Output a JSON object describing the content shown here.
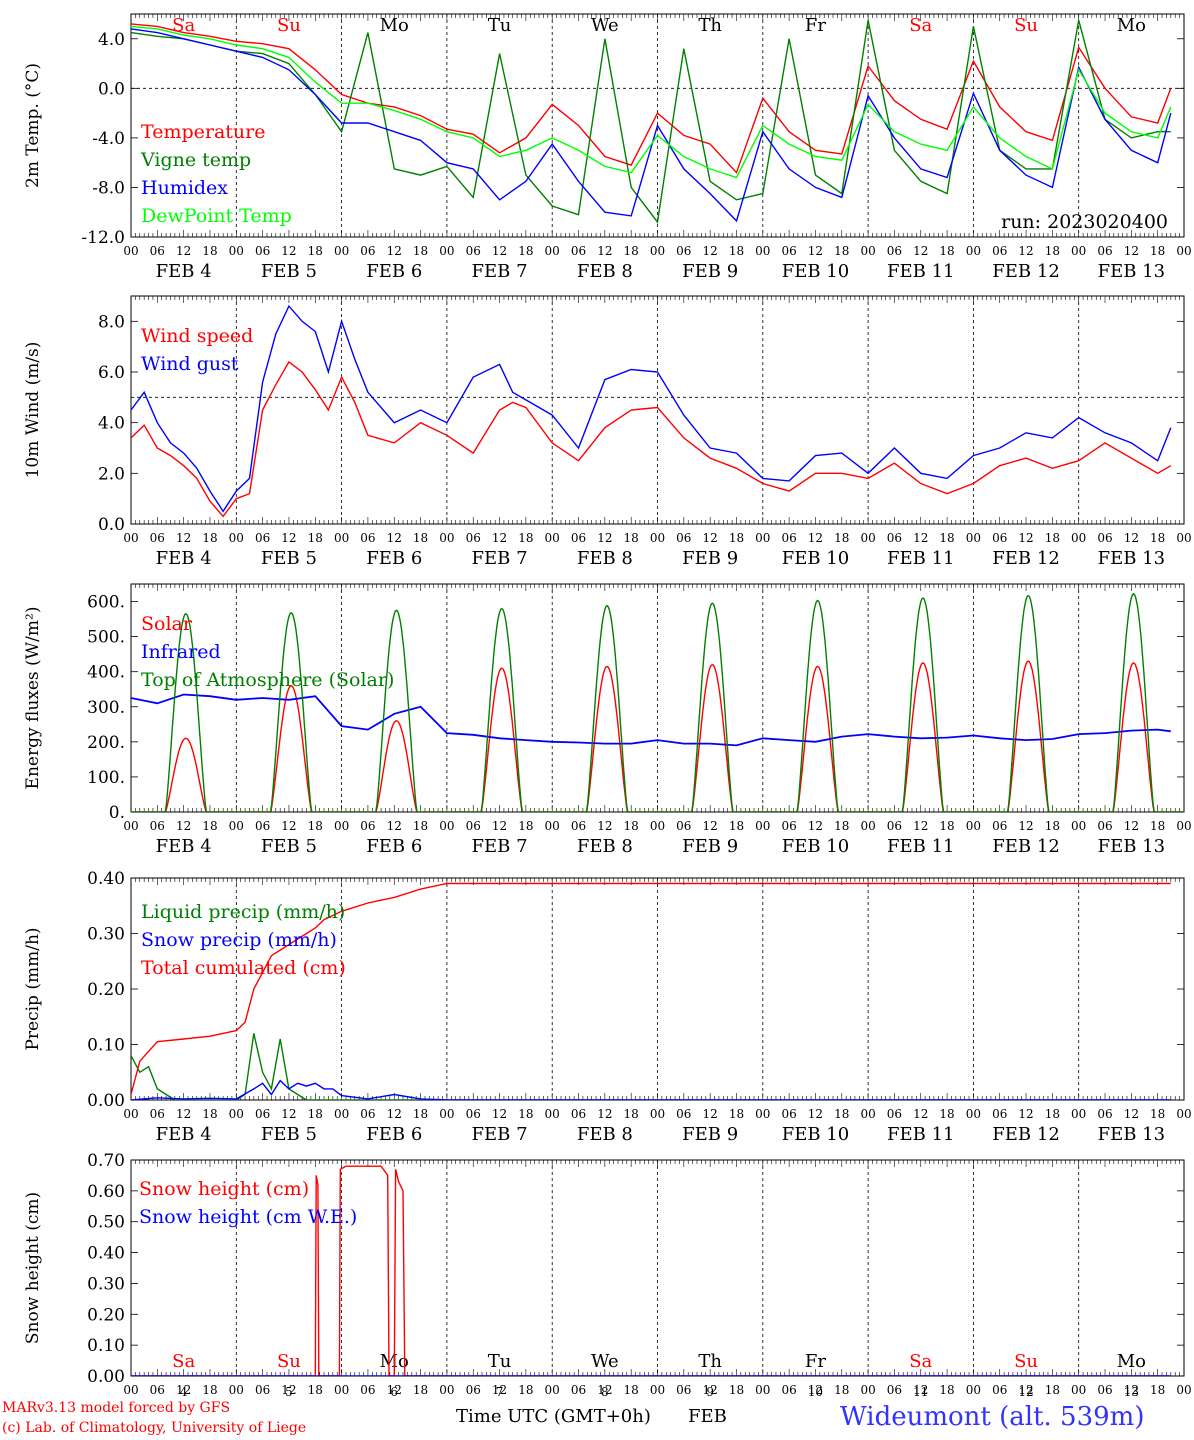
{
  "days": [
    {
      "label": "FEB  4",
      "short": "Sa",
      "num": "4",
      "weekend": true
    },
    {
      "label": "FEB  5",
      "short": "Su",
      "num": "5",
      "weekend": true
    },
    {
      "label": "FEB  6",
      "short": "Mo",
      "num": "6",
      "weekend": false
    },
    {
      "label": "FEB  7",
      "short": "Tu",
      "num": "7",
      "weekend": false
    },
    {
      "label": "FEB  8",
      "short": "We",
      "num": "8",
      "weekend": false
    },
    {
      "label": "FEB  9",
      "short": "Th",
      "num": "9",
      "weekend": false
    },
    {
      "label": "FEB 10",
      "short": "Fr",
      "num": "10",
      "weekend": false
    },
    {
      "label": "FEB 11",
      "short": "Sa",
      "num": "11",
      "weekend": true
    },
    {
      "label": "FEB 12",
      "short": "Su",
      "num": "12",
      "weekend": true
    },
    {
      "label": "FEB 13",
      "short": "Mo",
      "num": "13",
      "weekend": false
    }
  ],
  "hour_ticks": [
    "00",
    "06",
    "12",
    "18"
  ],
  "colors": {
    "red": "#ff0000",
    "dark_green": "#008000",
    "blue": "#0000ff",
    "light_green": "#00ff00",
    "weekend": "#ff0000"
  },
  "chart_data": [
    {
      "type": "line",
      "ylabel": "2m Temp. (°C)",
      "ylim": [
        -12,
        6
      ],
      "yticks": [
        "4.0",
        "0.0",
        "-4.0",
        "-8.0",
        "-12.0"
      ],
      "ytick_values": [
        4,
        0,
        -4,
        -8,
        -12
      ],
      "reference_line": 0,
      "annotation": "run: 2023020400",
      "x_unit": "hours since FEB 4 00 UTC",
      "series": [
        {
          "name": "Temperature",
          "color": "#ff0000",
          "x": [
            0,
            6,
            12,
            18,
            24,
            30,
            36,
            42,
            48,
            54,
            60,
            66,
            72,
            78,
            84,
            90,
            96,
            102,
            108,
            114,
            120,
            126,
            132,
            138,
            144,
            150,
            156,
            162,
            168,
            174,
            180,
            186,
            192,
            198,
            204,
            210,
            216,
            222,
            228,
            234,
            237
          ],
          "y": [
            5.2,
            5.0,
            4.5,
            4.2,
            3.8,
            3.6,
            3.2,
            1.5,
            -0.5,
            -1.2,
            -1.5,
            -2.2,
            -3.3,
            -3.7,
            -5.2,
            -4.0,
            -1.3,
            -3.0,
            -5.5,
            -6.2,
            -2.0,
            -3.8,
            -4.5,
            -6.8,
            -0.8,
            -3.5,
            -5.0,
            -5.3,
            1.8,
            -1.0,
            -2.5,
            -3.3,
            2.2,
            -1.5,
            -3.5,
            -4.2,
            3.3,
            0,
            -2.3,
            -2.8,
            0.0
          ]
        },
        {
          "name": "Vigne temp",
          "color": "#008000",
          "x": [
            0,
            6,
            12,
            18,
            24,
            30,
            36,
            42,
            48,
            54,
            60,
            66,
            72,
            78,
            84,
            90,
            96,
            102,
            108,
            114,
            120,
            126,
            132,
            138,
            144,
            150,
            156,
            162,
            168,
            174,
            180,
            186,
            192,
            198,
            204,
            210,
            216,
            222,
            228,
            234,
            237
          ],
          "y": [
            4.5,
            4.2,
            4.0,
            3.5,
            3.0,
            2.8,
            2.0,
            -0.5,
            -3.5,
            4.5,
            -6.5,
            -7.0,
            -6.3,
            -8.8,
            2.8,
            -7.0,
            -9.5,
            -10.2,
            4.0,
            -8.0,
            -10.8,
            3.2,
            -7.5,
            -9.0,
            -8.5,
            4.0,
            -7.0,
            -8.5,
            5.5,
            -5.0,
            -7.5,
            -8.5,
            5.0,
            -5.0,
            -6.5,
            -6.5,
            5.5,
            -2.5,
            -4.0,
            -3.5,
            -3.5
          ]
        },
        {
          "name": "Humidex",
          "color": "#0000ff",
          "x": [
            0,
            6,
            12,
            18,
            24,
            30,
            36,
            42,
            48,
            54,
            60,
            66,
            72,
            78,
            84,
            90,
            96,
            102,
            108,
            114,
            120,
            126,
            132,
            138,
            144,
            150,
            156,
            162,
            168,
            174,
            180,
            186,
            192,
            198,
            204,
            210,
            216,
            222,
            228,
            234,
            237
          ],
          "y": [
            4.8,
            4.5,
            4.0,
            3.5,
            3.0,
            2.5,
            1.5,
            -0.5,
            -2.8,
            -2.8,
            -3.5,
            -4.2,
            -6.0,
            -6.5,
            -9.0,
            -7.5,
            -4.5,
            -7.5,
            -10.0,
            -10.3,
            -3.0,
            -6.5,
            -8.5,
            -10.7,
            -3.5,
            -6.5,
            -8.0,
            -8.8,
            -0.6,
            -4.0,
            -6.5,
            -7.2,
            -0.4,
            -5.0,
            -7.0,
            -8.0,
            1.7,
            -2.5,
            -5.0,
            -6.0,
            -2.0
          ]
        },
        {
          "name": "DewPoint Temp",
          "color": "#00ff00",
          "x": [
            0,
            6,
            12,
            18,
            24,
            30,
            36,
            42,
            48,
            54,
            60,
            66,
            72,
            78,
            84,
            90,
            96,
            102,
            108,
            114,
            120,
            126,
            132,
            138,
            144,
            150,
            156,
            162,
            168,
            174,
            180,
            186,
            192,
            198,
            204,
            210,
            216,
            222,
            228,
            234,
            237
          ],
          "y": [
            5.0,
            4.8,
            4.3,
            4.0,
            3.5,
            3.2,
            2.5,
            0.5,
            -1.2,
            -1.2,
            -1.8,
            -2.5,
            -3.5,
            -4.0,
            -5.5,
            -5.0,
            -4.0,
            -5.0,
            -6.3,
            -6.8,
            -3.8,
            -5.5,
            -6.5,
            -7.2,
            -3.0,
            -4.5,
            -5.5,
            -5.8,
            -1.3,
            -3.5,
            -4.5,
            -5.0,
            -1.5,
            -4.0,
            -5.5,
            -6.5,
            1.5,
            -2.0,
            -3.5,
            -4.0,
            -1.5
          ]
        }
      ]
    },
    {
      "type": "line",
      "ylabel": "10m Wind (m/s)",
      "ylim": [
        0,
        9
      ],
      "yticks": [
        "8.0",
        "6.0",
        "4.0",
        "2.0",
        "0.0"
      ],
      "ytick_values": [
        8,
        6,
        4,
        2,
        0
      ],
      "reference_line": 5,
      "series": [
        {
          "name": "Wind speed",
          "color": "#ff0000",
          "x": [
            0,
            3,
            6,
            9,
            12,
            15,
            18,
            21,
            24,
            27,
            30,
            33,
            36,
            39,
            42,
            45,
            48,
            51,
            54,
            60,
            66,
            72,
            78,
            84,
            87,
            90,
            96,
            102,
            108,
            114,
            120,
            126,
            132,
            138,
            144,
            150,
            156,
            162,
            168,
            174,
            180,
            186,
            192,
            198,
            204,
            210,
            216,
            222,
            228,
            234,
            237
          ],
          "y": [
            3.4,
            3.9,
            3.0,
            2.7,
            2.3,
            1.8,
            0.9,
            0.3,
            1.0,
            1.2,
            4.5,
            5.5,
            6.4,
            6.0,
            5.3,
            4.5,
            5.8,
            4.8,
            3.5,
            3.2,
            4.0,
            3.5,
            2.8,
            4.5,
            4.8,
            4.6,
            3.2,
            2.5,
            3.8,
            4.5,
            4.6,
            3.4,
            2.6,
            2.2,
            1.6,
            1.3,
            2.0,
            2.0,
            1.8,
            2.4,
            1.6,
            1.2,
            1.6,
            2.3,
            2.6,
            2.2,
            2.5,
            3.2,
            2.6,
            2.0,
            2.3
          ]
        },
        {
          "name": "Wind gust",
          "color": "#0000ff",
          "x": [
            0,
            3,
            6,
            9,
            12,
            15,
            18,
            21,
            24,
            27,
            30,
            33,
            36,
            39,
            42,
            45,
            48,
            51,
            54,
            60,
            66,
            72,
            78,
            84,
            87,
            90,
            96,
            102,
            108,
            114,
            120,
            126,
            132,
            138,
            144,
            150,
            156,
            162,
            168,
            174,
            180,
            186,
            192,
            198,
            204,
            210,
            216,
            222,
            228,
            234,
            237
          ],
          "y": [
            4.5,
            5.2,
            4.0,
            3.2,
            2.8,
            2.2,
            1.3,
            0.5,
            1.3,
            1.8,
            5.6,
            7.5,
            8.6,
            8.0,
            7.6,
            6.0,
            8.0,
            6.5,
            5.2,
            4.0,
            4.5,
            4.0,
            5.8,
            6.3,
            5.2,
            4.9,
            4.3,
            3.0,
            5.7,
            6.1,
            6.0,
            4.3,
            3.0,
            2.8,
            1.8,
            1.7,
            2.7,
            2.8,
            2.0,
            3.0,
            2.0,
            1.8,
            2.7,
            3.0,
            3.6,
            3.4,
            4.2,
            3.6,
            3.2,
            2.5,
            3.8
          ]
        }
      ]
    },
    {
      "type": "line",
      "ylabel": "Energy fluxes (W/m²)",
      "ylim": [
        0,
        650
      ],
      "yticks": [
        "600.",
        "500.",
        "400.",
        "300.",
        "200.",
        "100.",
        "0."
      ],
      "ytick_values": [
        600,
        500,
        400,
        300,
        200,
        100,
        0
      ],
      "series": [
        {
          "name": "Solar",
          "color": "#ff0000",
          "daily_peaks": [
            210,
            360,
            260,
            410,
            415,
            420,
            415,
            425,
            430,
            425
          ]
        },
        {
          "name": "Infrared",
          "color": "#0000ff",
          "x": [
            0,
            6,
            12,
            18,
            24,
            30,
            36,
            42,
            48,
            54,
            60,
            66,
            72,
            78,
            84,
            90,
            96,
            102,
            108,
            114,
            120,
            126,
            132,
            138,
            144,
            150,
            156,
            162,
            168,
            174,
            180,
            186,
            192,
            198,
            204,
            210,
            216,
            222,
            228,
            234,
            237
          ],
          "y": [
            325,
            310,
            335,
            330,
            320,
            325,
            320,
            330,
            245,
            235,
            280,
            300,
            225,
            220,
            210,
            205,
            200,
            198,
            195,
            195,
            205,
            195,
            195,
            190,
            210,
            205,
            200,
            215,
            222,
            215,
            210,
            212,
            218,
            210,
            205,
            208,
            222,
            225,
            232,
            235,
            230
          ]
        },
        {
          "name": "Top of Atmosphere (Solar)",
          "color": "#008000",
          "daily_peaks": [
            565,
            568,
            575,
            580,
            588,
            595,
            603,
            610,
            617,
            622
          ]
        }
      ]
    },
    {
      "type": "line",
      "ylabel": "Precip (mm/h)",
      "ylim": [
        0,
        0.4
      ],
      "yticks": [
        "0.40",
        "0.30",
        "0.20",
        "0.10",
        "0.00"
      ],
      "ytick_values": [
        0.4,
        0.3,
        0.2,
        0.1,
        0
      ],
      "series": [
        {
          "name": "Liquid precip (mm/h)",
          "color": "#008000",
          "x": [
            0,
            2,
            4,
            6,
            8,
            10,
            24,
            26,
            28,
            30,
            32,
            34,
            36,
            38,
            40,
            42,
            44,
            46,
            48,
            60,
            72,
            237
          ],
          "y": [
            0.08,
            0.05,
            0.06,
            0.02,
            0.01,
            0,
            0,
            0.01,
            0.12,
            0.05,
            0.02,
            0.11,
            0.02,
            0.01,
            0,
            0,
            0,
            0,
            0,
            0,
            0,
            0
          ]
        },
        {
          "name": "Snow precip (mm/h)",
          "color": "#0000ff",
          "x": [
            0,
            6,
            12,
            18,
            24,
            28,
            30,
            32,
            34,
            36,
            38,
            40,
            42,
            44,
            46,
            48,
            54,
            60,
            66,
            72,
            237
          ],
          "y": [
            0,
            0.004,
            0.002,
            0.003,
            0.002,
            0.02,
            0.03,
            0.01,
            0.035,
            0.02,
            0.03,
            0.025,
            0.03,
            0.02,
            0.02,
            0.008,
            0.002,
            0.01,
            0.002,
            0,
            0
          ]
        },
        {
          "name": "Total cumulated (cm)",
          "color": "#ff0000",
          "x": [
            0,
            2,
            6,
            12,
            18,
            24,
            26,
            28,
            30,
            32,
            34,
            36,
            38,
            40,
            42,
            44,
            48,
            54,
            60,
            66,
            72,
            78,
            237
          ],
          "y": [
            0.01,
            0.07,
            0.105,
            0.11,
            0.115,
            0.125,
            0.14,
            0.2,
            0.23,
            0.26,
            0.27,
            0.28,
            0.29,
            0.3,
            0.31,
            0.325,
            0.34,
            0.355,
            0.365,
            0.38,
            0.39,
            0.39,
            0.39
          ]
        }
      ]
    },
    {
      "type": "line",
      "ylabel": "Snow height (cm)",
      "ylim": [
        0,
        0.7
      ],
      "yticks": [
        "0.70",
        "0.60",
        "0.50",
        "0.40",
        "0.30",
        "0.20",
        "0.10",
        "0.00"
      ],
      "ytick_values": [
        0.7,
        0.6,
        0.5,
        0.4,
        0.3,
        0.2,
        0.1,
        0
      ],
      "series": [
        {
          "name": "Snow height (cm)",
          "color": "#ff0000",
          "x": [
            0,
            42,
            42.2,
            42.6,
            42.8,
            47.5,
            47.7,
            49,
            52,
            57,
            58.5,
            58.8,
            60,
            60.3,
            61,
            62,
            62.4,
            237
          ],
          "y": [
            0,
            0,
            0.65,
            0.62,
            0,
            0,
            0.67,
            0.68,
            0.68,
            0.68,
            0.65,
            0,
            0,
            0.67,
            0.63,
            0.6,
            0,
            0
          ]
        },
        {
          "name": "Snow height (cm W.E.)",
          "color": "#0000ff",
          "x": [
            0,
            237
          ],
          "y": [
            0,
            0
          ]
        }
      ]
    }
  ],
  "bottom_axis": {
    "xlabel": "Time UTC (GMT+0h)",
    "month": "FEB"
  },
  "footer": {
    "model": "MARv3.13 model forced by GFS",
    "lab": "(c) Lab. of Climatology, University of Liege",
    "station": "Wideumont (alt. 539m)"
  }
}
